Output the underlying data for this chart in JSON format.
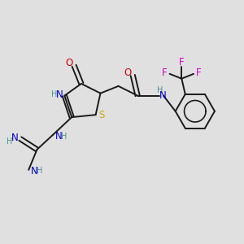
{
  "bg_color": "#e0e0e0",
  "bond_color": "#1a1a1a",
  "colors": {
    "N": "#0000cc",
    "O": "#cc0000",
    "S": "#ccaa00",
    "F": "#cc00cc",
    "H": "#4a9090",
    "C": "#1a1a1a"
  },
  "font_size": 8.5,
  "lw": 1.4
}
